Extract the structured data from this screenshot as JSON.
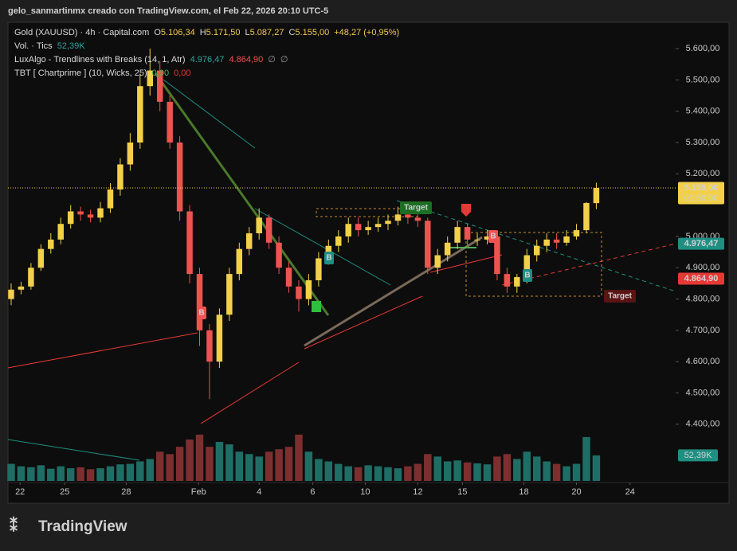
{
  "header": "gelo_sanmartinmx creado con TradingView.com, el Feb 22, 2026 20:10 UTC-5",
  "footer": "TradingView",
  "chart_data": {
    "type": "candlestick",
    "legend_rows": [
      {
        "texts": [
          "Gold (XAUUSD) · 4h · Capital.com",
          "O",
          "5.106,34",
          "H",
          "5.171,50",
          "L",
          "5.087,27",
          "C",
          "5.155,00",
          "+48,27 (+0,95%)"
        ],
        "colors": [
          "#d9d9d9",
          "#d9d9d9",
          "#f2c94c",
          "#d9d9d9",
          "#f2c94c",
          "#d9d9d9",
          "#f2c94c",
          "#d9d9d9",
          "#f2c94c",
          "#f2c94c"
        ]
      },
      {
        "texts": [
          "Vol. · Tics",
          "52,39K"
        ],
        "colors": [
          "#d9d9d9",
          "#26a69a"
        ]
      },
      {
        "texts": [
          "LuxAlgo - Trendlines with Breaks (14, 1, Atr)",
          "4.976,47",
          "4.864,90",
          "∅",
          "∅"
        ],
        "colors": [
          "#d9d9d9",
          "#26a69a",
          "#ef5350",
          "#9a9a9a",
          "#9a9a9a"
        ]
      },
      {
        "texts": [
          "TBT [ Chartprime ] (10, Wicks, 25)",
          "0,00",
          "0,00"
        ],
        "colors": [
          "#d9d9d9",
          "#4caf50",
          "#e53935"
        ]
      }
    ],
    "up_color": "#f2d04a",
    "down_color": "#ef5350",
    "volume_up_color": "#1f6e66",
    "volume_down_color": "#7d2f2f",
    "open": [
      4800,
      4830,
      4840,
      4900,
      4960,
      4990,
      5040,
      5080,
      5070,
      5060,
      5090,
      5150,
      5230,
      5300,
      5480,
      5530,
      5430,
      5300,
      5080,
      4880,
      4700,
      4600,
      4750,
      4880,
      4960,
      5010,
      5060,
      4980,
      4900,
      4840,
      4800,
      4860,
      4930,
      4970,
      5000,
      5040,
      5020,
      5030,
      5040,
      5050,
      5070,
      5060,
      5050,
      4900,
      4940,
      4980,
      5030,
      4990,
      4990,
      5000,
      4880,
      4840,
      4870,
      4940,
      4970,
      4990,
      4980,
      5000,
      5020,
      5106.34
    ],
    "high": [
      4850,
      4855,
      4915,
      4975,
      5010,
      5060,
      5100,
      5095,
      5085,
      5110,
      5170,
      5250,
      5330,
      5520,
      5600,
      5560,
      5450,
      5320,
      5100,
      4900,
      4720,
      4770,
      4900,
      4980,
      5030,
      5090,
      5070,
      5000,
      4920,
      4860,
      4880,
      4950,
      4990,
      5020,
      5060,
      5060,
      5050,
      5060,
      5070,
      5095,
      5090,
      5075,
      5060,
      4960,
      5000,
      5050,
      5040,
      5010,
      5020,
      5010,
      4900,
      4880,
      4960,
      4990,
      5010,
      5010,
      5020,
      5040,
      5110,
      5171.5
    ],
    "low": [
      4780,
      4815,
      4830,
      4890,
      4945,
      4975,
      5025,
      5050,
      5045,
      5045,
      5075,
      5130,
      5210,
      5280,
      5450,
      5400,
      5280,
      5050,
      4850,
      4650,
      4480,
      4580,
      4730,
      4860,
      4940,
      4990,
      4960,
      4880,
      4820,
      4760,
      4780,
      4840,
      4910,
      4950,
      4980,
      5000,
      5005,
      5015,
      5020,
      5035,
      5040,
      5030,
      4880,
      4880,
      4920,
      4960,
      4970,
      4970,
      4975,
      4860,
      4820,
      4820,
      4850,
      4920,
      4950,
      4960,
      4970,
      4990,
      5010,
      5087.27
    ],
    "close": [
      4830,
      4840,
      4900,
      4960,
      4990,
      5040,
      5080,
      5070,
      5060,
      5090,
      5150,
      5230,
      5300,
      5480,
      5530,
      5430,
      5300,
      5080,
      4880,
      4700,
      4600,
      4750,
      4880,
      4960,
      5010,
      5060,
      4980,
      4900,
      4840,
      4800,
      4860,
      4930,
      4970,
      5000,
      5040,
      5020,
      5030,
      5040,
      5050,
      5070,
      5060,
      5050,
      4900,
      4940,
      4980,
      5030,
      4990,
      4990,
      5000,
      4880,
      4840,
      4870,
      4940,
      4970,
      4990,
      4980,
      5000,
      5020,
      5106.73,
      5155
    ],
    "volume": [
      35,
      30,
      28,
      32,
      25,
      30,
      26,
      28,
      24,
      26,
      30,
      34,
      35,
      40,
      45,
      60,
      55,
      70,
      85,
      95,
      70,
      80,
      75,
      60,
      55,
      50,
      60,
      65,
      70,
      95,
      60,
      45,
      40,
      35,
      30,
      28,
      32,
      30,
      28,
      26,
      30,
      35,
      55,
      50,
      40,
      42,
      38,
      36,
      34,
      50,
      55,
      45,
      60,
      50,
      40,
      35,
      30,
      35,
      90,
      52.39
    ],
    "volume_label": "52,39K",
    "volume_lim": [
      0,
      160
    ],
    "xlim": [
      0,
      67
    ],
    "ylim": [
      4219,
      5684
    ],
    "yticks": [
      {
        "value": 5600,
        "label": "5.600,00"
      },
      {
        "value": 5500,
        "label": "5.500,00"
      },
      {
        "value": 5400,
        "label": "5.400,00"
      },
      {
        "value": 5300,
        "label": "5.300,00"
      },
      {
        "value": 5200,
        "label": "5.200,00"
      },
      {
        "value": 5000,
        "label": "5.000,00"
      },
      {
        "value": 4900,
        "label": "4.900,00"
      },
      {
        "value": 4800,
        "label": "4.800,00"
      },
      {
        "value": 4700,
        "label": "4.700,00"
      },
      {
        "value": 4600,
        "label": "4.600,00"
      },
      {
        "value": 4500,
        "label": "4.500,00"
      },
      {
        "value": 4400,
        "label": "4.400,00"
      }
    ],
    "xticks": [
      {
        "value": 0.9,
        "label": "22"
      },
      {
        "value": 5.4,
        "label": "25"
      },
      {
        "value": 11.6,
        "label": "28"
      },
      {
        "value": 18.9,
        "label": "Feb"
      },
      {
        "value": 25,
        "label": "4"
      },
      {
        "value": 30.4,
        "label": "6"
      },
      {
        "value": 35.7,
        "label": "10"
      },
      {
        "value": 41,
        "label": "12"
      },
      {
        "value": 45.5,
        "label": "15"
      },
      {
        "value": 51.7,
        "label": "18"
      },
      {
        "value": 57,
        "label": "20"
      },
      {
        "value": 62.4,
        "label": "24"
      }
    ],
    "price_badges": [
      {
        "value": 5155,
        "label": "5.155,00",
        "sub": "01:50:00",
        "color": "#f2d04a"
      },
      {
        "value": 4976.47,
        "label": "4.976,47",
        "color": "#1f8f82"
      },
      {
        "value": 4864.9,
        "label": "4.864,90",
        "color": "#e53935"
      }
    ],
    "annotations": [
      "B",
      "B",
      "B",
      "B",
      "Target",
      "Target"
    ]
  }
}
